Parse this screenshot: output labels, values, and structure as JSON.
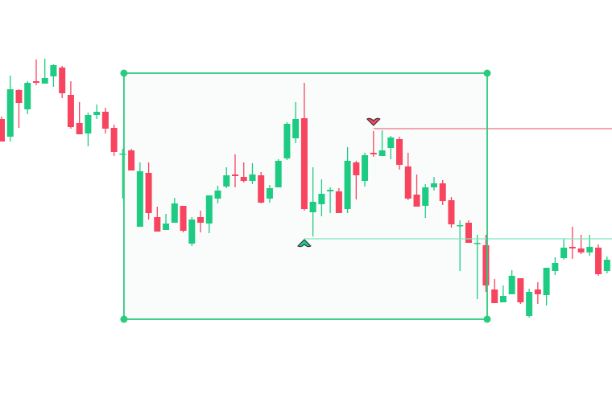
{
  "chart_data": {
    "type": "candlestick",
    "colors": {
      "up": "#1ecb83",
      "down": "#f7445f",
      "selection": "#2bcb7e",
      "selection_fill": "#f9fcfb",
      "high_line": "#f07080",
      "low_line": "#7fe8c0",
      "marker_outline": "#333333"
    },
    "candles": [
      [
        352,
        355,
        324,
        324
      ],
      [
        330,
        406,
        324,
        389
      ],
      [
        388,
        389,
        341,
        372
      ],
      [
        364,
        399,
        358,
        397
      ],
      [
        399,
        426,
        394,
        397
      ],
      [
        396,
        427,
        396,
        403
      ],
      [
        405,
        420,
        392,
        419
      ],
      [
        416,
        418,
        378,
        384
      ],
      [
        382,
        399,
        340,
        342
      ],
      [
        347,
        373,
        333,
        333
      ],
      [
        334,
        360,
        318,
        357
      ],
      [
        357,
        370,
        352,
        361
      ],
      [
        361,
        366,
        334,
        340
      ],
      [
        341,
        345,
        306,
        311
      ],
      [
        309,
        315,
        253,
        309
      ],
      [
        313,
        315,
        288,
        288
      ],
      [
        218,
        298,
        218,
        287
      ],
      [
        285,
        298,
        227,
        235
      ],
      [
        230,
        243,
        212,
        212
      ],
      [
        214,
        234,
        214,
        222
      ],
      [
        223,
        254,
        223,
        247
      ],
      [
        244,
        244,
        211,
        213
      ],
      [
        197,
        230,
        194,
        227
      ],
      [
        230,
        238,
        211,
        223
      ],
      [
        222,
        257,
        210,
        257
      ],
      [
        253,
        269,
        247,
        263
      ],
      [
        268,
        292,
        266,
        282
      ],
      [
        283,
        308,
        267,
        281
      ],
      [
        280,
        298,
        273,
        275
      ],
      [
        275,
        297,
        271,
        283
      ],
      [
        282,
        286,
        247,
        248
      ],
      [
        253,
        270,
        248,
        266
      ],
      [
        267,
        302,
        267,
        300
      ],
      [
        303,
        348,
        301,
        346
      ],
      [
        328,
        373,
        322,
        352
      ],
      [
        353,
        397,
        238,
        240
      ],
      [
        236,
        292,
        206,
        249
      ],
      [
        246,
        277,
        231,
        259
      ],
      [
        262,
        267,
        235,
        264
      ],
      [
        262,
        266,
        235,
        235
      ],
      [
        240,
        317,
        235,
        300
      ],
      [
        298,
        300,
        252,
        282
      ],
      [
        275,
        310,
        268,
        307
      ],
      [
        310,
        337,
        305,
        308
      ],
      [
        306,
        338,
        306,
        313
      ],
      [
        316,
        331,
        302,
        329
      ],
      [
        327,
        330,
        289,
        295
      ],
      [
        293,
        310,
        251,
        253
      ],
      [
        258,
        283,
        243,
        243
      ],
      [
        244,
        271,
        229,
        267
      ],
      [
        267,
        280,
        263,
        272
      ],
      [
        272,
        276,
        245,
        250
      ],
      [
        251,
        255,
        217,
        221
      ],
      [
        220,
        226,
        163,
        220
      ],
      [
        223,
        226,
        198,
        198
      ],
      [
        198,
        208,
        128,
        198
      ],
      [
        195,
        208,
        137,
        145
      ],
      [
        140,
        153,
        123,
        123
      ],
      [
        124,
        145,
        124,
        132
      ],
      [
        134,
        164,
        134,
        157
      ],
      [
        154,
        154,
        122,
        124
      ],
      [
        107,
        141,
        105,
        137
      ],
      [
        140,
        149,
        122,
        134
      ],
      [
        133,
        167,
        120,
        167
      ],
      [
        163,
        180,
        158,
        173
      ],
      [
        179,
        203,
        177,
        192
      ],
      [
        193,
        218,
        178,
        191
      ],
      [
        191,
        208,
        184,
        186
      ],
      [
        186,
        208,
        182,
        193
      ],
      [
        192,
        196,
        157,
        159
      ],
      [
        163,
        181,
        160,
        177
      ],
      [
        177,
        212,
        177,
        210
      ],
      [
        213,
        257,
        210,
        257
      ]
    ],
    "ohlc_order": [
      "open",
      "high",
      "low",
      "close"
    ],
    "selection": {
      "start_index": 14.1,
      "end_index": 56.1,
      "price_top": 409,
      "price_bottom": 103
    },
    "high_marker": {
      "index": 43,
      "price": 340
    },
    "low_marker": {
      "index": 35,
      "price": 206
    },
    "high_line_price": 340,
    "low_line_price": 203
  }
}
